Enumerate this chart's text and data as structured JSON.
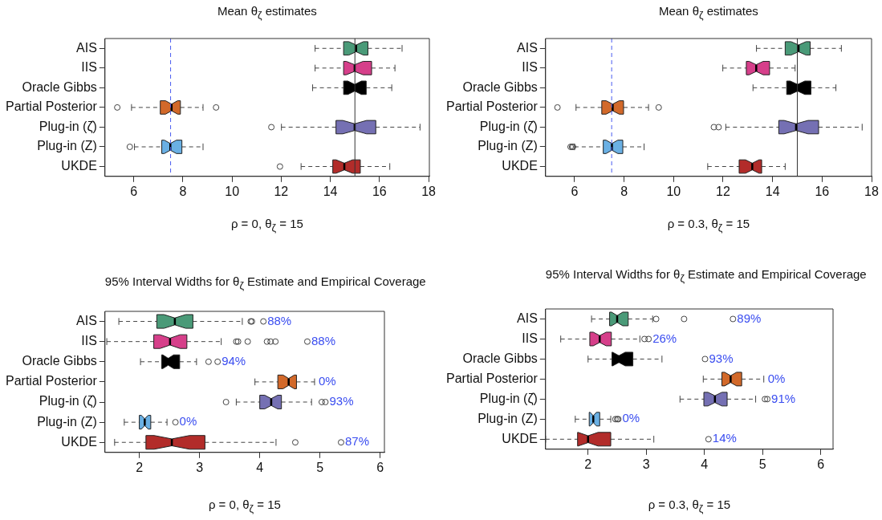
{
  "chart_data": [
    {
      "type": "box",
      "orientation": "horizontal",
      "title": "Mean θ$_{ζ}$ estimates",
      "xlabel": "ρ = 0, θ$_{ζ}$ = 15",
      "categories": [
        "AIS",
        "IIS",
        "Oracle Gibbs",
        "Partial Posterior",
        "Plug-in (ζ̂)",
        "Plug-in (Z)",
        "UKDE"
      ],
      "colors": [
        "#4a9a78",
        "#d63f8a",
        "#000000",
        "#d2692a",
        "#7570b3",
        "#6ab0e4",
        "#b22c2a"
      ],
      "xlim": [
        4.83,
        18.03
      ],
      "xticks": [
        6,
        8,
        10,
        12,
        14,
        16,
        18
      ],
      "grid": false,
      "legend": false,
      "boxes": [
        {
          "low": 13.38,
          "q1": 14.54,
          "median": 15.05,
          "q3": 15.53,
          "high": 16.92
        },
        {
          "low": 13.38,
          "q1": 14.54,
          "median": 14.99,
          "q3": 15.68,
          "high": 16.63
        },
        {
          "low": 13.28,
          "q1": 14.54,
          "median": 14.99,
          "q3": 15.46,
          "high": 16.5
        },
        {
          "low": 5.91,
          "q1": 7.08,
          "median": 7.54,
          "q3": 7.9,
          "high": 8.82,
          "outliers": [
            5.33,
            9.35
          ]
        },
        {
          "low": 12.01,
          "q1": 14.23,
          "median": 14.99,
          "q3": 15.85,
          "high": 17.65,
          "outliers": [
            11.6
          ]
        },
        {
          "low": 6.03,
          "q1": 7.14,
          "median": 7.49,
          "q3": 7.96,
          "high": 8.82,
          "outliers": [
            5.84
          ]
        },
        {
          "low": 12.81,
          "q1": 14.1,
          "median": 14.57,
          "q3": 15.22,
          "high": 16.42,
          "outliers": [
            11.95
          ]
        }
      ],
      "ref_lines": [
        {
          "axis": "x",
          "value": 15,
          "color": "#333333",
          "line_style": "solid"
        },
        {
          "axis": "x",
          "value": 7.5,
          "color": "#4a5cf0",
          "line_style": "dashed"
        }
      ]
    },
    {
      "type": "box",
      "orientation": "horizontal",
      "title": "Mean θ$_{ζ}$ estimates",
      "xlabel": "ρ = 0.3, θ$_{ζ}$ = 15",
      "categories": [
        "AIS",
        "IIS",
        "Oracle Gibbs",
        "Partial Posterior",
        "Plug-in (ζ̂)",
        "Plug-in (Z)",
        "UKDE"
      ],
      "colors": [
        "#4a9a78",
        "#d63f8a",
        "#000000",
        "#d2692a",
        "#7570b3",
        "#6ab0e4",
        "#b22c2a"
      ],
      "xlim": [
        4.83,
        18.0
      ],
      "xticks": [
        6,
        8,
        10,
        12,
        14,
        16,
        18
      ],
      "grid": false,
      "legend": false,
      "boxes": [
        {
          "low": 13.35,
          "q1": 14.51,
          "median": 15.05,
          "q3": 15.52,
          "high": 16.78
        },
        {
          "low": 11.99,
          "q1": 12.94,
          "median": 13.34,
          "q3": 13.88,
          "high": 14.91
        },
        {
          "low": 13.21,
          "q1": 14.57,
          "median": 15.01,
          "q3": 15.55,
          "high": 16.56
        },
        {
          "low": 6.06,
          "q1": 7.1,
          "median": 7.54,
          "q3": 7.98,
          "high": 8.99,
          "outliers": [
            5.31,
            9.4
          ]
        },
        {
          "low": 12.11,
          "q1": 14.25,
          "median": 14.95,
          "q3": 15.86,
          "high": 17.62,
          "outliers": [
            11.63,
            11.82
          ]
        },
        {
          "low": 6.0,
          "q1": 7.16,
          "median": 7.51,
          "q3": 7.95,
          "high": 8.81,
          "outliers": [
            5.84,
            5.9,
            5.94
          ]
        },
        {
          "low": 11.38,
          "q1": 12.65,
          "median": 13.18,
          "q3": 13.56,
          "high": 14.51
        }
      ],
      "ref_lines": [
        {
          "axis": "x",
          "value": 15,
          "color": "#333333",
          "line_style": "solid"
        },
        {
          "axis": "x",
          "value": 7.5,
          "color": "#4a5cf0",
          "line_style": "dashed"
        }
      ]
    },
    {
      "type": "box",
      "orientation": "horizontal",
      "title": "95% Interval Widths for θ$_{ζ}$ Estimate and Empirical Coverage",
      "xlabel": "ρ = 0, θ$_{ζ}$ = 15",
      "categories": [
        "AIS",
        "IIS",
        "Oracle Gibbs",
        "Partial Posterior",
        "Plug-in (ζ̂)",
        "Plug-in (Z)",
        "UKDE"
      ],
      "colors": [
        "#4a9a78",
        "#d63f8a",
        "#000000",
        "#d2692a",
        "#7570b3",
        "#6ab0e4",
        "#b22c2a"
      ],
      "xlim": [
        1.43,
        6.07
      ],
      "xticks": [
        2,
        3,
        4,
        5,
        6
      ],
      "grid": false,
      "legend": false,
      "boxes": [
        {
          "low": 1.66,
          "q1": 2.29,
          "median": 2.59,
          "q3": 2.89,
          "high": 3.71,
          "outliers": [
            3.85,
            3.87,
            4.06
          ]
        },
        {
          "low": 1.46,
          "q1": 2.24,
          "median": 2.51,
          "q3": 2.79,
          "high": 3.36,
          "outliers": [
            3.61,
            3.64,
            3.8,
            4.12,
            4.18,
            4.26,
            4.79
          ]
        },
        {
          "low": 2.02,
          "q1": 2.37,
          "median": 2.48,
          "q3": 2.67,
          "high": 2.95,
          "outliers": [
            3.15,
            3.3
          ]
        },
        {
          "low": 3.92,
          "q1": 4.3,
          "median": 4.48,
          "q3": 4.61,
          "high": 4.91
        },
        {
          "low": 3.61,
          "q1": 4.0,
          "median": 4.19,
          "q3": 4.36,
          "high": 4.86,
          "outliers": [
            3.44,
            5.03,
            5.09
          ]
        },
        {
          "low": 1.75,
          "q1": 2.0,
          "median": 2.09,
          "q3": 2.19,
          "high": 2.46,
          "outliers": [
            2.6
          ]
        },
        {
          "low": 1.59,
          "q1": 2.11,
          "median": 2.54,
          "q3": 3.09,
          "high": 4.27,
          "outliers": [
            4.59,
            5.35
          ]
        }
      ],
      "annotations": [
        "88%",
        "88%",
        "94%",
        "0%",
        "93%",
        "0%",
        "87%"
      ]
    },
    {
      "type": "box",
      "orientation": "horizontal",
      "title": "95% Interval Widths for θ$_{ζ}$ Estimate and Empirical Coverage",
      "xlabel": "ρ = 0.3, θ$_{ζ}$ = 15",
      "categories": [
        "AIS",
        "IIS",
        "Oracle Gibbs",
        "Partial Posterior",
        "Plug-in (ζ̂)",
        "Plug-in (Z)",
        "UKDE"
      ],
      "colors": [
        "#4a9a78",
        "#d63f8a",
        "#000000",
        "#d2692a",
        "#7570b3",
        "#6ab0e4",
        "#b22c2a"
      ],
      "xlim": [
        1.27,
        6.21
      ],
      "xticks": [
        2,
        3,
        4,
        5,
        6
      ],
      "grid": false,
      "legend": false,
      "boxes": [
        {
          "low": 2.06,
          "q1": 2.37,
          "median": 2.5,
          "q3": 2.69,
          "high": 3.11,
          "outliers": [
            3.17,
            3.65,
            4.49
          ]
        },
        {
          "low": 1.53,
          "q1": 2.03,
          "median": 2.2,
          "q3": 2.4,
          "high": 2.89,
          "outliers": [
            2.97,
            3.04
          ]
        },
        {
          "low": 2.0,
          "q1": 2.41,
          "median": 2.53,
          "q3": 2.77,
          "high": 3.27,
          "outliers": [
            4.01
          ]
        },
        {
          "low": 3.98,
          "q1": 4.3,
          "median": 4.45,
          "q3": 4.64,
          "high": 5.02
        },
        {
          "low": 3.58,
          "q1": 3.99,
          "median": 4.18,
          "q3": 4.39,
          "high": 4.88,
          "outliers": [
            5.04,
            5.08
          ]
        },
        {
          "low": 1.78,
          "q1": 2.02,
          "median": 2.09,
          "q3": 2.2,
          "high": 2.39,
          "outliers": [
            2.47,
            2.5,
            2.52
          ]
        },
        {
          "low": 1.27,
          "q1": 1.82,
          "median": 2.0,
          "q3": 2.39,
          "high": 3.13,
          "outliers": [
            4.07
          ]
        }
      ],
      "annotations": [
        "89%",
        "26%",
        "93%",
        "0%",
        "91%",
        "0%",
        "14%"
      ]
    }
  ]
}
